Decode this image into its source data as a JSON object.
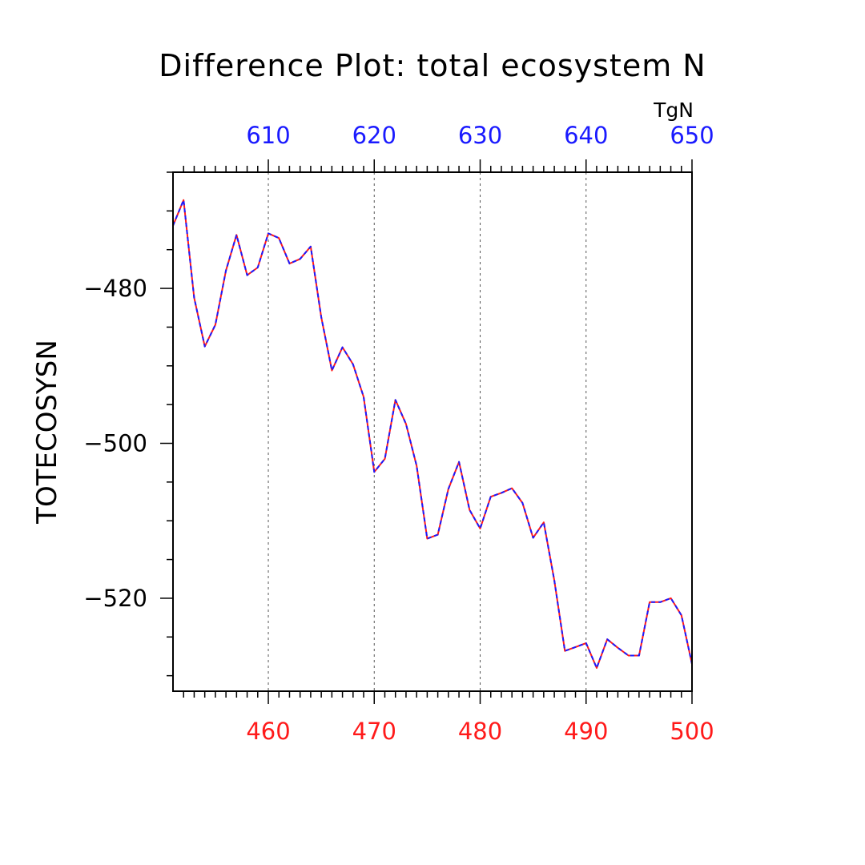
{
  "chart_data": {
    "type": "line",
    "title": "Difference Plot: total ecosystem N",
    "units": "TgN",
    "ylabel": "TOTECOSYSN",
    "xlabel": "",
    "bottom_axis": {
      "range": [
        451,
        500
      ],
      "major_ticks": [
        460,
        470,
        480,
        490,
        500
      ],
      "tick_labels": [
        "460",
        "470",
        "480",
        "490",
        "500"
      ],
      "color": "#ff1a1a"
    },
    "top_axis": {
      "range": [
        601,
        650
      ],
      "major_ticks": [
        610,
        620,
        630,
        640,
        650
      ],
      "tick_labels": [
        "610",
        "620",
        "630",
        "640",
        "650"
      ],
      "color": "#1a1aff"
    },
    "ylim": [
      -532,
      -465
    ],
    "yticks": [
      -480,
      -500,
      -520
    ],
    "ytick_labels": [
      "−480",
      "−500",
      "−520"
    ],
    "grid": "dashed vertical at major x ticks",
    "series": [
      {
        "axis": "bottom",
        "color": "#ff1a1a",
        "x": [
          451,
          452,
          453,
          454,
          455,
          456,
          457,
          458,
          459,
          460,
          461,
          462,
          463,
          464,
          465,
          466,
          467,
          468,
          469,
          470,
          471,
          472,
          473,
          474,
          475,
          476,
          477,
          478,
          479,
          480,
          481,
          482,
          483,
          484,
          485,
          486,
          487,
          488,
          489,
          490,
          491,
          492,
          493,
          494,
          495,
          496,
          497,
          498,
          499,
          500
        ],
        "values": [
          -471.9,
          -468.6,
          -481.2,
          -487.5,
          -484.7,
          -477.7,
          -473.1,
          -478.3,
          -477.3,
          -472.9,
          -473.5,
          -476.8,
          -476.2,
          -474.6,
          -483.7,
          -490.6,
          -487.6,
          -489.8,
          -494.0,
          -503.7,
          -502.0,
          -494.4,
          -497.5,
          -502.9,
          -512.3,
          -511.8,
          -505.9,
          -502.4,
          -508.6,
          -511.0,
          -506.9,
          -506.4,
          -505.8,
          -507.7,
          -512.2,
          -510.2,
          -517.7,
          -526.8,
          -526.3,
          -525.8,
          -529.0,
          -525.3,
          -526.4,
          -527.4,
          -527.4,
          -520.5,
          -520.5,
          -520.0,
          -522.2,
          -528.5
        ]
      },
      {
        "axis": "top",
        "color": "#1a1aff",
        "x": [
          601,
          602,
          603,
          604,
          605,
          606,
          607,
          608,
          609,
          610,
          611,
          612,
          613,
          614,
          615,
          616,
          617,
          618,
          619,
          620,
          621,
          622,
          623,
          624,
          625,
          626,
          627,
          628,
          629,
          630,
          631,
          632,
          633,
          634,
          635,
          636,
          637,
          638,
          639,
          640,
          641,
          642,
          643,
          644,
          645,
          646,
          647,
          648,
          649,
          650
        ],
        "values": [
          -471.9,
          -468.6,
          -481.2,
          -487.5,
          -484.7,
          -477.7,
          -473.1,
          -478.3,
          -477.3,
          -472.9,
          -473.5,
          -476.8,
          -476.2,
          -474.6,
          -483.7,
          -490.6,
          -487.6,
          -489.8,
          -494.0,
          -503.7,
          -502.0,
          -494.4,
          -497.5,
          -502.9,
          -512.3,
          -511.8,
          -505.9,
          -502.4,
          -508.6,
          -511.0,
          -506.9,
          -506.4,
          -505.8,
          -507.7,
          -512.2,
          -510.2,
          -517.7,
          -526.8,
          -526.3,
          -525.8,
          -529.0,
          -525.3,
          -526.4,
          -527.4,
          -527.4,
          -520.5,
          -520.5,
          -520.0,
          -522.2,
          -528.5
        ]
      }
    ]
  }
}
